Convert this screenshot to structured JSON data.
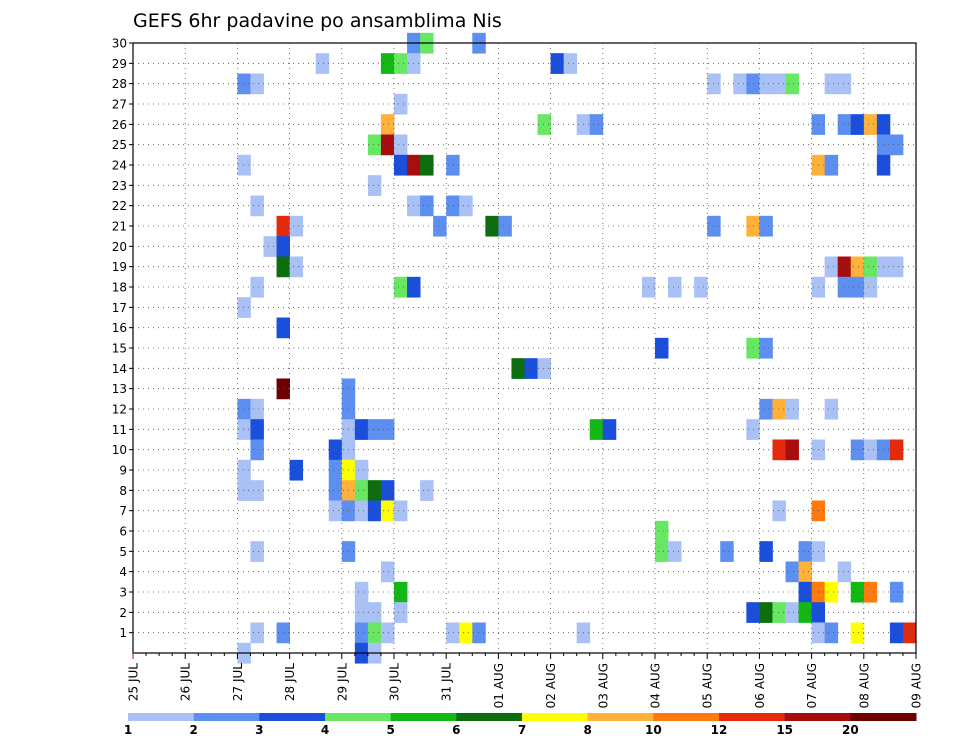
{
  "chart_data": {
    "type": "heatmap",
    "title": "GEFS 6hr padavine po ansamblima Nis",
    "xlabel": "",
    "ylabel": "",
    "x_ticks": [
      "25 JUL",
      "26 JUL",
      "27 JUL",
      "28 JUL",
      "29 JUL",
      "30 JUL",
      "31 JUL",
      "01 AUG",
      "02 AUG",
      "03 AUG",
      "04 AUG",
      "05 AUG",
      "06 AUG",
      "07 AUG",
      "08 AUG",
      "09 AUG"
    ],
    "y_ticks": [
      "1",
      "2",
      "3",
      "4",
      "5",
      "6",
      "7",
      "8",
      "9",
      "10",
      "11",
      "12",
      "13",
      "14",
      "15",
      "16",
      "17",
      "18",
      "19",
      "20",
      "21",
      "22",
      "23",
      "24",
      "25",
      "26",
      "27",
      "28",
      "29",
      "30"
    ],
    "xlim": [
      "25 JUL",
      "09 AUG"
    ],
    "ylim": [
      0,
      30
    ],
    "time_step_hours": 6,
    "grid": true,
    "legend_position": "bottom",
    "color_scale": {
      "labels": [
        "1",
        "2",
        "3",
        "4",
        "5",
        "6",
        "7",
        "8",
        "10",
        "12",
        "15",
        "20"
      ],
      "colors": [
        "#a9c1f5",
        "#5d8ff0",
        "#1a4fdc",
        "#68e862",
        "#14b814",
        "#0d6e0d",
        "#ffff00",
        "#ffb13a",
        "#ff7a0d",
        "#e32a0d",
        "#a80d0d",
        "#6e0000"
      ]
    },
    "cells": [
      [
        30,
        21,
        2
      ],
      [
        30,
        22,
        4
      ],
      [
        30,
        26,
        2
      ],
      [
        29,
        14,
        1
      ],
      [
        29,
        19,
        5
      ],
      [
        29,
        20,
        4
      ],
      [
        29,
        21,
        1
      ],
      [
        29,
        32,
        3
      ],
      [
        29,
        33,
        1
      ],
      [
        28,
        8,
        2
      ],
      [
        28,
        9,
        1
      ],
      [
        28,
        44,
        1
      ],
      [
        28,
        46,
        1
      ],
      [
        28,
        47,
        2
      ],
      [
        28,
        48,
        1
      ],
      [
        28,
        49,
        1
      ],
      [
        28,
        50,
        4
      ],
      [
        28,
        53,
        1
      ],
      [
        28,
        54,
        1
      ],
      [
        27,
        20,
        1
      ],
      [
        26,
        19,
        8
      ],
      [
        26,
        31,
        4
      ],
      [
        26,
        34,
        1
      ],
      [
        26,
        35,
        2
      ],
      [
        26,
        52,
        2
      ],
      [
        26,
        54,
        2
      ],
      [
        26,
        55,
        3
      ],
      [
        26,
        56,
        8
      ],
      [
        26,
        57,
        3
      ],
      [
        25,
        18,
        4
      ],
      [
        25,
        19,
        11
      ],
      [
        25,
        20,
        1
      ],
      [
        25,
        57,
        2
      ],
      [
        25,
        58,
        2
      ],
      [
        24,
        8,
        1
      ],
      [
        24,
        20,
        3
      ],
      [
        24,
        21,
        11
      ],
      [
        24,
        22,
        6
      ],
      [
        24,
        24,
        2
      ],
      [
        24,
        52,
        8
      ],
      [
        24,
        53,
        2
      ],
      [
        24,
        57,
        3
      ],
      [
        23,
        18,
        1
      ],
      [
        22,
        9,
        1
      ],
      [
        22,
        21,
        1
      ],
      [
        22,
        22,
        2
      ],
      [
        22,
        24,
        2
      ],
      [
        22,
        25,
        1
      ],
      [
        21,
        11,
        10
      ],
      [
        21,
        12,
        1
      ],
      [
        21,
        23,
        2
      ],
      [
        21,
        27,
        6
      ],
      [
        21,
        28,
        2
      ],
      [
        21,
        44,
        2
      ],
      [
        21,
        47,
        8
      ],
      [
        21,
        48,
        2
      ],
      [
        20,
        10,
        1
      ],
      [
        20,
        11,
        3
      ],
      [
        19,
        11,
        6
      ],
      [
        19,
        12,
        1
      ],
      [
        19,
        53,
        1
      ],
      [
        19,
        54,
        11
      ],
      [
        19,
        55,
        8
      ],
      [
        19,
        56,
        4
      ],
      [
        19,
        57,
        1
      ],
      [
        19,
        58,
        1
      ],
      [
        18,
        9,
        1
      ],
      [
        18,
        20,
        4
      ],
      [
        18,
        21,
        3
      ],
      [
        18,
        39,
        1
      ],
      [
        18,
        41,
        1
      ],
      [
        18,
        43,
        1
      ],
      [
        18,
        52,
        1
      ],
      [
        18,
        54,
        2
      ],
      [
        18,
        55,
        2
      ],
      [
        18,
        56,
        1
      ],
      [
        17,
        8,
        1
      ],
      [
        16,
        11,
        3
      ],
      [
        15,
        40,
        3
      ],
      [
        15,
        47,
        4
      ],
      [
        15,
        48,
        2
      ],
      [
        14,
        29,
        6
      ],
      [
        14,
        30,
        3
      ],
      [
        14,
        31,
        1
      ],
      [
        13,
        11,
        12
      ],
      [
        13,
        16,
        2
      ],
      [
        12,
        8,
        2
      ],
      [
        12,
        9,
        1
      ],
      [
        12,
        16,
        2
      ],
      [
        12,
        48,
        2
      ],
      [
        12,
        49,
        8
      ],
      [
        12,
        50,
        1
      ],
      [
        12,
        53,
        1
      ],
      [
        11,
        8,
        1
      ],
      [
        11,
        9,
        3
      ],
      [
        11,
        16,
        1
      ],
      [
        11,
        17,
        3
      ],
      [
        11,
        18,
        2
      ],
      [
        11,
        19,
        2
      ],
      [
        11,
        35,
        5
      ],
      [
        11,
        36,
        3
      ],
      [
        11,
        47,
        1
      ],
      [
        10,
        9,
        2
      ],
      [
        10,
        15,
        3
      ],
      [
        10,
        16,
        1
      ],
      [
        10,
        49,
        10
      ],
      [
        10,
        50,
        11
      ],
      [
        10,
        52,
        1
      ],
      [
        10,
        55,
        2
      ],
      [
        10,
        56,
        1
      ],
      [
        10,
        57,
        2
      ],
      [
        10,
        58,
        10
      ],
      [
        9,
        8,
        1
      ],
      [
        9,
        12,
        3
      ],
      [
        9,
        15,
        2
      ],
      [
        9,
        16,
        7
      ],
      [
        9,
        17,
        1
      ],
      [
        8,
        8,
        1
      ],
      [
        8,
        9,
        1
      ],
      [
        8,
        15,
        2
      ],
      [
        8,
        16,
        8
      ],
      [
        8,
        17,
        4
      ],
      [
        8,
        18,
        6
      ],
      [
        8,
        19,
        3
      ],
      [
        8,
        22,
        1
      ],
      [
        7,
        15,
        1
      ],
      [
        7,
        16,
        2
      ],
      [
        7,
        17,
        1
      ],
      [
        7,
        18,
        3
      ],
      [
        7,
        19,
        7
      ],
      [
        7,
        20,
        1
      ],
      [
        7,
        49,
        1
      ],
      [
        7,
        52,
        9
      ],
      [
        6,
        40,
        4
      ],
      [
        5,
        9,
        1
      ],
      [
        5,
        16,
        2
      ],
      [
        5,
        40,
        4
      ],
      [
        5,
        41,
        1
      ],
      [
        5,
        45,
        2
      ],
      [
        5,
        48,
        3
      ],
      [
        5,
        51,
        2
      ],
      [
        5,
        52,
        1
      ],
      [
        4,
        19,
        1
      ],
      [
        4,
        50,
        2
      ],
      [
        4,
        51,
        8
      ],
      [
        4,
        54,
        1
      ],
      [
        3,
        17,
        1
      ],
      [
        3,
        20,
        5
      ],
      [
        3,
        51,
        3
      ],
      [
        3,
        52,
        9
      ],
      [
        3,
        53,
        7
      ],
      [
        3,
        55,
        5
      ],
      [
        3,
        56,
        9
      ],
      [
        3,
        58,
        2
      ],
      [
        2,
        17,
        1
      ],
      [
        2,
        18,
        1
      ],
      [
        2,
        20,
        1
      ],
      [
        2,
        47,
        3
      ],
      [
        2,
        48,
        6
      ],
      [
        2,
        49,
        4
      ],
      [
        2,
        50,
        1
      ],
      [
        2,
        51,
        5
      ],
      [
        2,
        52,
        3
      ],
      [
        1,
        9,
        1
      ],
      [
        1,
        11,
        2
      ],
      [
        1,
        17,
        2
      ],
      [
        1,
        18,
        4
      ],
      [
        1,
        19,
        1
      ],
      [
        1,
        24,
        1
      ],
      [
        1,
        25,
        7
      ],
      [
        1,
        26,
        2
      ],
      [
        1,
        34,
        1
      ],
      [
        1,
        52,
        1
      ],
      [
        1,
        53,
        2
      ],
      [
        1,
        55,
        7
      ],
      [
        1,
        58,
        3
      ],
      [
        1,
        59,
        10
      ],
      [
        0,
        8,
        1
      ],
      [
        0,
        17,
        3
      ],
      [
        0,
        18,
        1
      ]
    ]
  }
}
